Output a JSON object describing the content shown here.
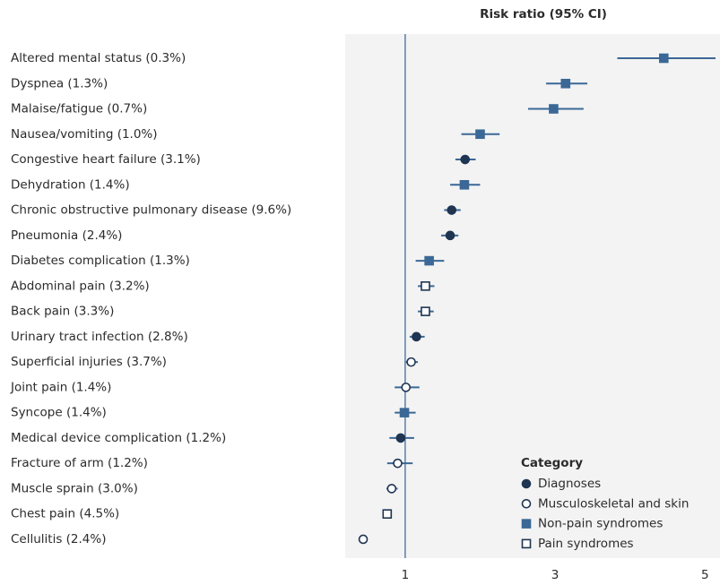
{
  "chart_data": {
    "type": "forest",
    "title": "Risk ratio (95% CI)",
    "categories": [
      "Altered mental status (0.3%)",
      "Dyspnea (1.3%)",
      "Malaise/fatigue (0.7%)",
      "Nausea/vomiting (1.0%)",
      "Congestive heart failure (3.1%)",
      "Dehydration (1.4%)",
      "Chronic obstructive pulmonary disease (9.6%)",
      "Pneumonia (2.4%)",
      "Diabetes complication (1.3%)",
      "Abdominal pain (3.2%)",
      "Back pain (3.3%)",
      "Urinary tract infection (2.8%)",
      "Superficial injuries (3.7%)",
      "Joint pain (1.4%)",
      "Syncope (1.4%)",
      "Medical device complication (1.2%)",
      "Fracture of arm (1.2%)",
      "Muscle sprain (3.0%)",
      "Chest pain (4.5%)",
      "Cellulitis (2.4%)"
    ],
    "legend_title": "Category",
    "series": [
      {
        "name": "Diagnoses",
        "marker": "circle",
        "filled": true,
        "color": "#1f3552",
        "values": [
          null,
          null,
          null,
          null,
          1.8,
          null,
          1.62,
          1.6,
          null,
          null,
          null,
          1.15,
          null,
          null,
          null,
          0.94,
          null,
          null,
          null,
          null
        ],
        "lower": [
          null,
          null,
          null,
          null,
          1.67,
          null,
          1.52,
          1.48,
          null,
          null,
          null,
          1.06,
          null,
          null,
          null,
          0.79,
          null,
          null,
          null,
          null
        ],
        "upper": [
          null,
          null,
          null,
          null,
          1.94,
          null,
          1.74,
          1.71,
          null,
          null,
          null,
          1.26,
          null,
          null,
          null,
          1.12,
          null,
          null,
          null,
          null
        ]
      },
      {
        "name": "Musculoskeletal and skin",
        "marker": "circle",
        "filled": false,
        "color": "#1f3552",
        "values": [
          null,
          null,
          null,
          null,
          null,
          null,
          null,
          null,
          null,
          null,
          null,
          null,
          1.08,
          1.01,
          null,
          null,
          0.9,
          0.82,
          null,
          0.44
        ],
        "lower": [
          null,
          null,
          null,
          null,
          null,
          null,
          null,
          null,
          null,
          null,
          null,
          null,
          1.01,
          0.86,
          null,
          null,
          0.76,
          0.75,
          null,
          0.42
        ],
        "upper": [
          null,
          null,
          null,
          null,
          null,
          null,
          null,
          null,
          null,
          null,
          null,
          null,
          1.17,
          1.19,
          null,
          null,
          1.1,
          0.9,
          null,
          0.46
        ]
      },
      {
        "name": "Non-pain syndromes",
        "marker": "square",
        "filled": true,
        "color": "#3b6896",
        "values": [
          4.45,
          3.14,
          2.98,
          2.0,
          null,
          1.79,
          null,
          null,
          1.32,
          null,
          null,
          null,
          null,
          null,
          0.99,
          null,
          null,
          null,
          null,
          null
        ],
        "lower": [
          3.83,
          2.88,
          2.64,
          1.75,
          null,
          1.6,
          null,
          null,
          1.14,
          null,
          null,
          null,
          null,
          null,
          0.86,
          null,
          null,
          null,
          null,
          null
        ],
        "upper": [
          5.14,
          3.43,
          3.38,
          2.26,
          null,
          2.0,
          null,
          null,
          1.52,
          null,
          null,
          null,
          null,
          null,
          1.14,
          null,
          null,
          null,
          null,
          null
        ]
      },
      {
        "name": "Pain syndromes",
        "marker": "square",
        "filled": false,
        "color": "#1f3552",
        "values": [
          null,
          null,
          null,
          null,
          null,
          null,
          null,
          null,
          null,
          1.27,
          1.27,
          null,
          null,
          null,
          null,
          null,
          null,
          null,
          0.76,
          null
        ],
        "lower": [
          null,
          null,
          null,
          null,
          null,
          null,
          null,
          null,
          null,
          1.17,
          1.17,
          null,
          null,
          null,
          null,
          null,
          null,
          null,
          0.71,
          null
        ],
        "upper": [
          null,
          null,
          null,
          null,
          null,
          null,
          null,
          null,
          null,
          1.39,
          1.38,
          null,
          null,
          null,
          null,
          null,
          null,
          null,
          0.82,
          null
        ]
      }
    ],
    "xlim": [
      0.2,
      5.2
    ],
    "xticks": [
      1,
      3,
      5
    ]
  }
}
